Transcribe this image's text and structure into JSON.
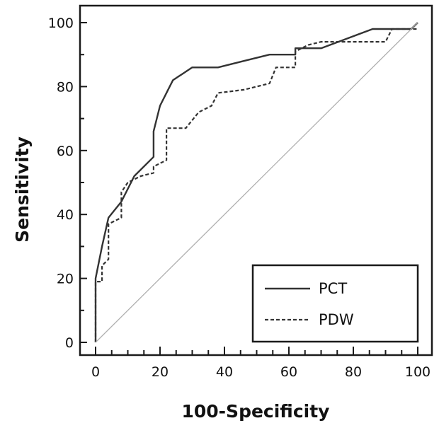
{
  "chart_data": {
    "type": "line",
    "xlabel": "100-Specificity",
    "ylabel": "Sensitivity",
    "xlim": [
      0,
      100
    ],
    "ylim": [
      0,
      100
    ],
    "x_ticks": [
      0,
      20,
      40,
      60,
      80,
      100
    ],
    "y_ticks": [
      0,
      20,
      40,
      60,
      80,
      100
    ],
    "legend_position": "bottom-right",
    "grid": false,
    "series": [
      {
        "name": "PCT",
        "style": "solid",
        "color": "#333333",
        "x": [
          0,
          0,
          2,
          4,
          8,
          12,
          18,
          18,
          20,
          22,
          24,
          30,
          38,
          46,
          54,
          62,
          62,
          70,
          78,
          86,
          98,
          100
        ],
        "y": [
          0,
          20,
          30,
          39,
          44,
          52,
          58,
          66,
          74,
          78,
          82,
          86,
          86,
          88,
          90,
          90,
          92,
          92,
          95,
          98,
          98,
          100
        ]
      },
      {
        "name": "PDW",
        "style": "dashed",
        "color": "#333333",
        "x": [
          0,
          0,
          2,
          2,
          4,
          4,
          6,
          8,
          8,
          10,
          14,
          18,
          18,
          22,
          22,
          28,
          32,
          36,
          38,
          46,
          54,
          56,
          62,
          62,
          66,
          70,
          74,
          82,
          90,
          92,
          100
        ],
        "y": [
          0,
          19,
          19,
          24,
          26,
          37,
          38,
          39,
          47,
          50,
          52,
          53,
          55,
          57,
          67,
          67,
          72,
          74,
          78,
          79,
          81,
          86,
          86,
          91,
          93,
          94,
          94,
          94,
          94,
          98,
          98
        ]
      },
      {
        "name": "",
        "style": "reference",
        "color": "#b0b0b0",
        "x": [
          0,
          100
        ],
        "y": [
          0,
          100
        ]
      }
    ]
  }
}
